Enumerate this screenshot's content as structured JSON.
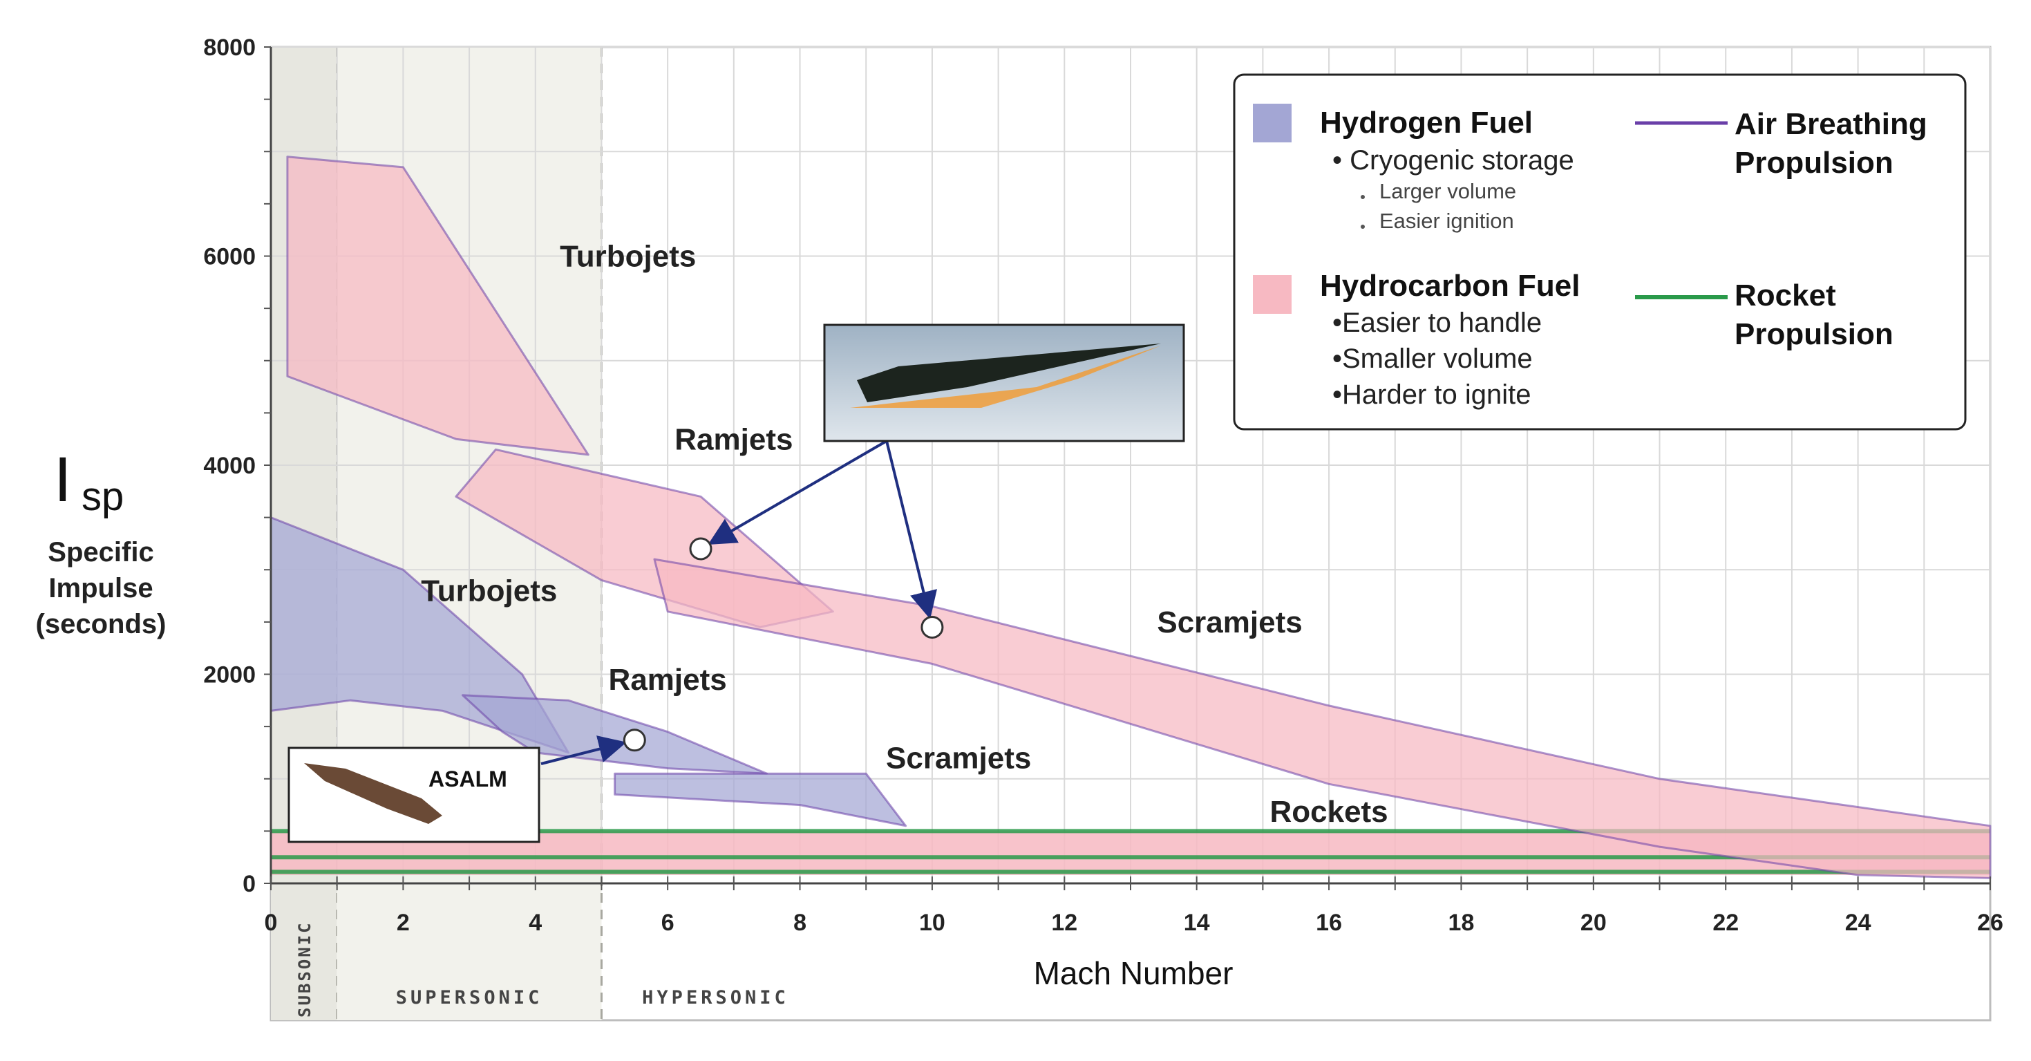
{
  "chart_data": {
    "type": "area",
    "xlabel": "Mach Number",
    "ylabel": {
      "symbol": "I",
      "subscript": "sp",
      "lines": [
        "Specific",
        "Impulse",
        "(seconds)"
      ]
    },
    "xlim": [
      0,
      26
    ],
    "ylim": [
      0,
      8000
    ],
    "x_ticks": [
      0,
      2,
      4,
      6,
      8,
      10,
      12,
      14,
      16,
      18,
      20,
      22,
      24,
      26
    ],
    "y_ticks": [
      0,
      2000,
      4000,
      6000,
      8000
    ],
    "grid": true,
    "speed_regimes": [
      {
        "label": "SUBSONIC",
        "x_range": [
          0,
          1
        ]
      },
      {
        "label": "SUPERSONIC",
        "x_range": [
          1,
          5
        ]
      },
      {
        "label": "HYPERSONIC",
        "x_range": [
          5,
          26
        ]
      }
    ],
    "series": [
      {
        "name": "Turbojets",
        "fuel": "hydrogen",
        "label_at": [
          5.4,
          5900
        ],
        "polygon": [
          [
            0.25,
            6950
          ],
          [
            2,
            6850
          ],
          [
            4.8,
            4100
          ],
          [
            2.8,
            4250
          ],
          [
            0.25,
            4850
          ]
        ]
      },
      {
        "name": "Ramjets",
        "fuel": "hydrogen",
        "label_at": [
          7,
          4150
        ],
        "polygon": [
          [
            2.8,
            3700
          ],
          [
            3.4,
            4150
          ],
          [
            6.5,
            3700
          ],
          [
            8.5,
            2600
          ],
          [
            7.4,
            2450
          ],
          [
            5,
            2900
          ]
        ]
      },
      {
        "name": "Scramjets",
        "fuel": "hydrogen",
        "label_at": [
          14.5,
          2400
        ],
        "polygon": [
          [
            5.8,
            3100
          ],
          [
            10,
            2650
          ],
          [
            16,
            1700
          ],
          [
            21,
            1000
          ],
          [
            26,
            550
          ],
          [
            26,
            50
          ],
          [
            24,
            80
          ],
          [
            21,
            350
          ],
          [
            16,
            950
          ],
          [
            10,
            2100
          ],
          [
            6,
            2600
          ]
        ]
      },
      {
        "name": "Turbojets",
        "fuel": "hydrocarbon",
        "label_at": [
          3.3,
          2700
        ],
        "polygon": [
          [
            0,
            3500
          ],
          [
            2,
            3000
          ],
          [
            3.8,
            2000
          ],
          [
            4.5,
            1250
          ],
          [
            2.6,
            1650
          ],
          [
            1.2,
            1750
          ],
          [
            0,
            1650
          ]
        ]
      },
      {
        "name": "Ramjets",
        "fuel": "hydrocarbon",
        "label_at": [
          6,
          1850
        ],
        "polygon": [
          [
            2.9,
            1800
          ],
          [
            4.5,
            1750
          ],
          [
            6,
            1450
          ],
          [
            7.5,
            1050
          ],
          [
            6,
            1100
          ],
          [
            4,
            1250
          ],
          [
            3.5,
            1450
          ]
        ]
      },
      {
        "name": "Scramjets",
        "fuel": "hydrocarbon",
        "label_at": [
          10.4,
          1100
        ],
        "polygon": [
          [
            5.2,
            1050
          ],
          [
            9,
            1050
          ],
          [
            9.6,
            550
          ],
          [
            8,
            750
          ],
          [
            5.2,
            850
          ]
        ]
      },
      {
        "name": "Rockets",
        "fuel": "hydrocarbon",
        "propulsion": "rocket",
        "label_at": [
          16,
          590
        ],
        "polygon": [
          [
            0,
            500
          ],
          [
            26,
            500
          ],
          [
            26,
            80
          ],
          [
            0,
            80
          ]
        ],
        "lines_y": [
          500,
          250,
          110
        ]
      }
    ],
    "markers": [
      {
        "x": 6.5,
        "y": 3200
      },
      {
        "x": 10,
        "y": 2450
      },
      {
        "x": 5.5,
        "y": 1370
      }
    ],
    "legend": {
      "placement": "top-right",
      "entries": [
        {
          "name": "Hydrogen Fuel",
          "swatch": "#a3a6d4",
          "items": [
            "• Cryogenic storage"
          ],
          "subitems": [
            "Larger volume",
            "Easier ignition"
          ]
        },
        {
          "name": "Hydrocarbon Fuel",
          "swatch": "#f7b9c2",
          "items": [
            "•Easier to handle",
            "•Smaller volume",
            "•Harder to ignite"
          ]
        },
        {
          "name": [
            "Air Breathing",
            "Propulsion"
          ],
          "line_color": "#6a3fa8"
        },
        {
          "name": [
            "Rocket",
            "Propulsion"
          ],
          "line_color": "#2a9a4a"
        }
      ]
    },
    "insets": [
      {
        "label": "",
        "depicts": "hypersonic vehicle photo"
      },
      {
        "label": "ASALM",
        "depicts": "missile photo"
      }
    ],
    "colors": {
      "hydrogen_fill": "#a3a6d4",
      "hydrocarbon_fill": "#f7b9c2",
      "air_breathing_line": "#6a3fa8",
      "rocket_line": "#2a9a4a",
      "subsonic_band": "#e7e7e0",
      "supersonic_band": "#f2f2ec"
    }
  }
}
